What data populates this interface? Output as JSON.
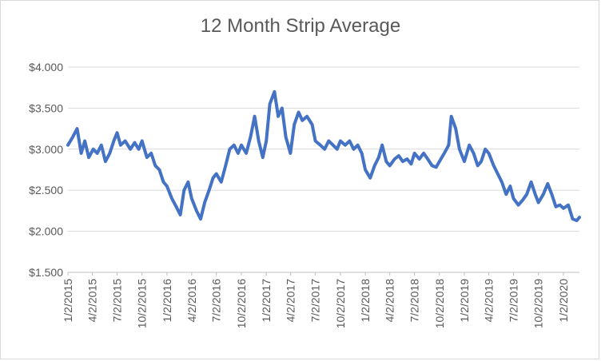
{
  "chart_data": {
    "type": "line",
    "title": "12 Month Strip Average",
    "xlabel": "",
    "ylabel": "",
    "ylim": [
      1.5,
      4.0
    ],
    "y_ticks": [
      1.5,
      2.0,
      2.5,
      3.0,
      3.5,
      4.0
    ],
    "y_tick_labels": [
      "$1.500",
      "$2.000",
      "$2.500",
      "$3.000",
      "$3.500",
      "$4.000"
    ],
    "x_tick_labels": [
      "1/2/2015",
      "4/2/2015",
      "7/2/2015",
      "10/2/2015",
      "1/2/2016",
      "4/2/2016",
      "7/2/2016",
      "10/2/2016",
      "1/2/2017",
      "4/2/2017",
      "7/2/2017",
      "10/2/2017",
      "1/2/2018",
      "4/2/2018",
      "7/2/2018",
      "10/2/2018",
      "1/2/2019",
      "4/2/2019",
      "7/2/2019",
      "10/2/2019",
      "1/2/2020"
    ],
    "xlim": [
      "2015-01-02",
      "2020-03-01"
    ],
    "grid": true,
    "legend": "none",
    "series": [
      {
        "color": "#4472c4",
        "points": [
          [
            "2015-01-02",
            3.05
          ],
          [
            "2015-01-20",
            3.15
          ],
          [
            "2015-02-05",
            3.25
          ],
          [
            "2015-02-20",
            2.95
          ],
          [
            "2015-03-05",
            3.1
          ],
          [
            "2015-03-20",
            2.9
          ],
          [
            "2015-04-05",
            3.0
          ],
          [
            "2015-04-20",
            2.95
          ],
          [
            "2015-05-05",
            3.05
          ],
          [
            "2015-05-20",
            2.85
          ],
          [
            "2015-06-05",
            2.95
          ],
          [
            "2015-06-20",
            3.1
          ],
          [
            "2015-07-02",
            3.2
          ],
          [
            "2015-07-15",
            3.05
          ],
          [
            "2015-08-01",
            3.1
          ],
          [
            "2015-08-20",
            3.0
          ],
          [
            "2015-09-05",
            3.08
          ],
          [
            "2015-09-20",
            3.0
          ],
          [
            "2015-10-02",
            3.1
          ],
          [
            "2015-10-20",
            2.9
          ],
          [
            "2015-11-05",
            2.95
          ],
          [
            "2015-11-20",
            2.8
          ],
          [
            "2015-12-05",
            2.75
          ],
          [
            "2015-12-20",
            2.6
          ],
          [
            "2016-01-02",
            2.55
          ],
          [
            "2016-01-20",
            2.4
          ],
          [
            "2016-02-05",
            2.3
          ],
          [
            "2016-02-20",
            2.2
          ],
          [
            "2016-03-05",
            2.5
          ],
          [
            "2016-03-20",
            2.6
          ],
          [
            "2016-04-02",
            2.4
          ],
          [
            "2016-04-20",
            2.25
          ],
          [
            "2016-05-05",
            2.15
          ],
          [
            "2016-05-20",
            2.35
          ],
          [
            "2016-06-05",
            2.5
          ],
          [
            "2016-06-20",
            2.65
          ],
          [
            "2016-07-02",
            2.7
          ],
          [
            "2016-07-20",
            2.6
          ],
          [
            "2016-08-05",
            2.8
          ],
          [
            "2016-08-20",
            3.0
          ],
          [
            "2016-09-05",
            3.05
          ],
          [
            "2016-09-20",
            2.95
          ],
          [
            "2016-10-02",
            3.05
          ],
          [
            "2016-10-20",
            2.95
          ],
          [
            "2016-11-05",
            3.15
          ],
          [
            "2016-11-20",
            3.4
          ],
          [
            "2016-12-05",
            3.1
          ],
          [
            "2016-12-20",
            2.9
          ],
          [
            "2017-01-02",
            3.1
          ],
          [
            "2017-01-15",
            3.55
          ],
          [
            "2017-02-01",
            3.7
          ],
          [
            "2017-02-15",
            3.4
          ],
          [
            "2017-03-01",
            3.5
          ],
          [
            "2017-03-15",
            3.15
          ],
          [
            "2017-04-01",
            2.95
          ],
          [
            "2017-04-15",
            3.3
          ],
          [
            "2017-05-01",
            3.45
          ],
          [
            "2017-05-15",
            3.35
          ],
          [
            "2017-06-01",
            3.4
          ],
          [
            "2017-06-20",
            3.3
          ],
          [
            "2017-07-02",
            3.1
          ],
          [
            "2017-07-20",
            3.05
          ],
          [
            "2017-08-05",
            3.0
          ],
          [
            "2017-08-20",
            3.1
          ],
          [
            "2017-09-05",
            3.05
          ],
          [
            "2017-09-20",
            3.0
          ],
          [
            "2017-10-02",
            3.1
          ],
          [
            "2017-10-20",
            3.05
          ],
          [
            "2017-11-05",
            3.1
          ],
          [
            "2017-11-20",
            3.0
          ],
          [
            "2017-12-05",
            3.05
          ],
          [
            "2017-12-20",
            2.95
          ],
          [
            "2018-01-02",
            2.75
          ],
          [
            "2018-01-20",
            2.65
          ],
          [
            "2018-02-05",
            2.8
          ],
          [
            "2018-02-20",
            2.9
          ],
          [
            "2018-03-05",
            3.05
          ],
          [
            "2018-03-20",
            2.85
          ],
          [
            "2018-04-02",
            2.8
          ],
          [
            "2018-04-20",
            2.88
          ],
          [
            "2018-05-05",
            2.92
          ],
          [
            "2018-05-20",
            2.85
          ],
          [
            "2018-06-05",
            2.88
          ],
          [
            "2018-06-20",
            2.82
          ],
          [
            "2018-07-02",
            2.95
          ],
          [
            "2018-07-20",
            2.88
          ],
          [
            "2018-08-05",
            2.95
          ],
          [
            "2018-08-20",
            2.88
          ],
          [
            "2018-09-05",
            2.8
          ],
          [
            "2018-09-20",
            2.78
          ],
          [
            "2018-10-02",
            2.85
          ],
          [
            "2018-10-20",
            2.95
          ],
          [
            "2018-11-05",
            3.05
          ],
          [
            "2018-11-15",
            3.4
          ],
          [
            "2018-12-01",
            3.25
          ],
          [
            "2018-12-15",
            3.0
          ],
          [
            "2019-01-02",
            2.85
          ],
          [
            "2019-01-20",
            3.05
          ],
          [
            "2019-02-05",
            2.95
          ],
          [
            "2019-02-20",
            2.8
          ],
          [
            "2019-03-05",
            2.85
          ],
          [
            "2019-03-20",
            3.0
          ],
          [
            "2019-04-02",
            2.95
          ],
          [
            "2019-04-20",
            2.8
          ],
          [
            "2019-05-05",
            2.7
          ],
          [
            "2019-05-20",
            2.6
          ],
          [
            "2019-06-05",
            2.45
          ],
          [
            "2019-06-20",
            2.55
          ],
          [
            "2019-07-02",
            2.4
          ],
          [
            "2019-07-20",
            2.32
          ],
          [
            "2019-08-05",
            2.38
          ],
          [
            "2019-08-20",
            2.45
          ],
          [
            "2019-09-05",
            2.6
          ],
          [
            "2019-09-20",
            2.45
          ],
          [
            "2019-10-02",
            2.35
          ],
          [
            "2019-10-20",
            2.45
          ],
          [
            "2019-11-05",
            2.58
          ],
          [
            "2019-11-20",
            2.45
          ],
          [
            "2019-12-05",
            2.3
          ],
          [
            "2019-12-20",
            2.32
          ],
          [
            "2020-01-02",
            2.28
          ],
          [
            "2020-01-20",
            2.32
          ],
          [
            "2020-02-05",
            2.15
          ],
          [
            "2020-02-20",
            2.13
          ],
          [
            "2020-03-01",
            2.17
          ]
        ]
      }
    ]
  }
}
